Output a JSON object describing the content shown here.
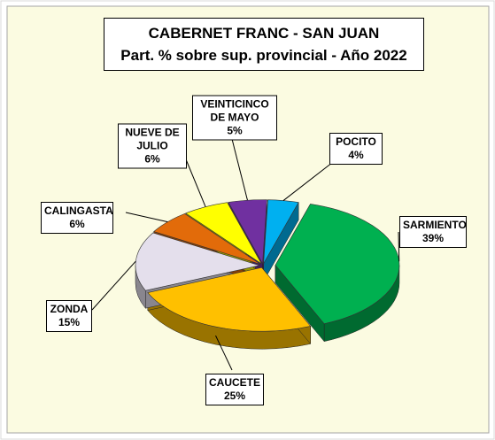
{
  "chart_data": {
    "type": "pie",
    "title": "CABERNET FRANC - SAN JUAN",
    "subtitle": "Part. % sobre sup. provincial  - Año 2022",
    "categories": [
      "POCITO",
      "SARMIENTO",
      "CAUCETE",
      "ZONDA",
      "CALINGASTA",
      "NUEVE DE JULIO",
      "VEINTICINCO DE MAYO"
    ],
    "values": [
      4,
      39,
      25,
      15,
      6,
      6,
      5
    ],
    "value_labels": [
      "4%",
      "39%",
      "25%",
      "15%",
      "6%",
      "6%",
      "5%"
    ],
    "colors": [
      "#00b0f0",
      "#00b050",
      "#ffc000",
      "#e4dfec",
      "#e26b0a",
      "#ffff00",
      "#7030a0"
    ]
  }
}
